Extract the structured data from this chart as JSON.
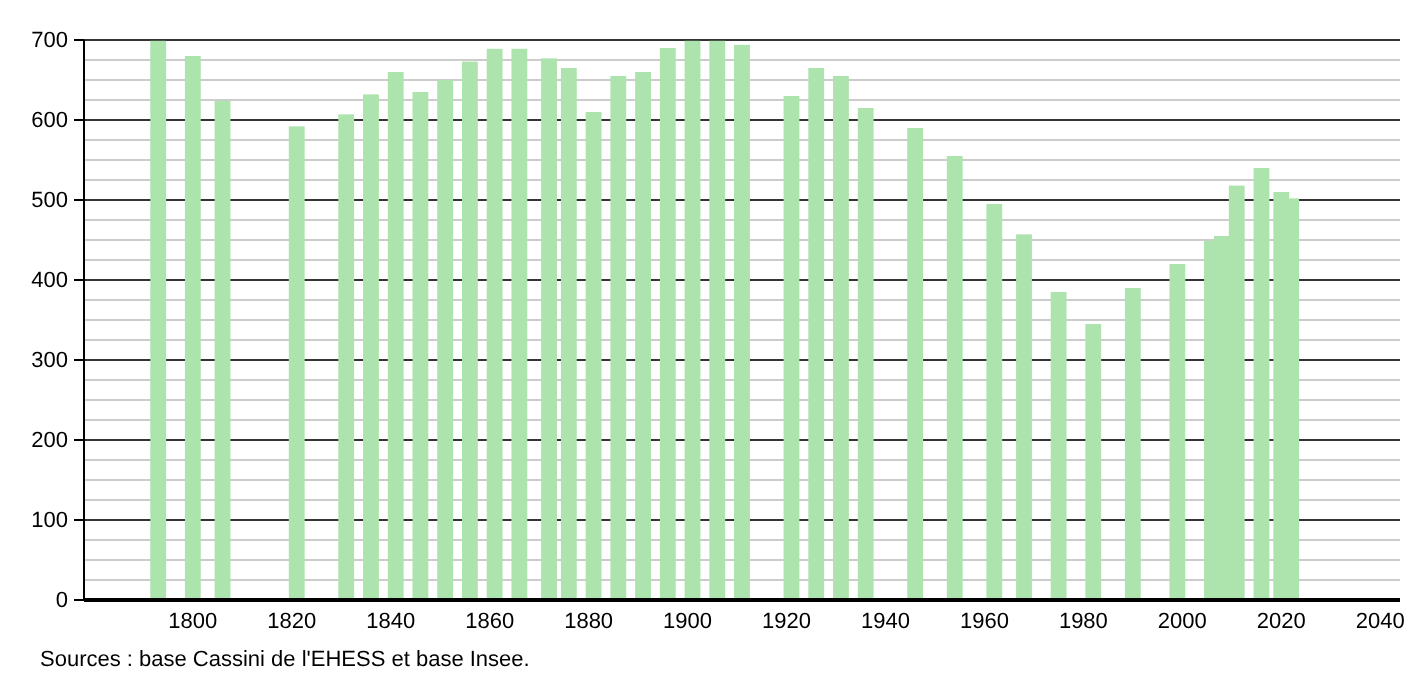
{
  "chart_data": {
    "type": "bar",
    "x": [
      1793,
      1800,
      1806,
      1821,
      1831,
      1836,
      1841,
      1846,
      1851,
      1856,
      1861,
      1866,
      1872,
      1876,
      1881,
      1886,
      1891,
      1896,
      1901,
      1906,
      1911,
      1921,
      1926,
      1931,
      1936,
      1946,
      1954,
      1962,
      1968,
      1975,
      1982,
      1990,
      1999,
      2006,
      2008,
      2011,
      2016,
      2020,
      2022
    ],
    "values": [
      699,
      680,
      624,
      592,
      607,
      632,
      660,
      635,
      650,
      673,
      689,
      689,
      677,
      665,
      610,
      655,
      660,
      690,
      699,
      699,
      694,
      630,
      665,
      655,
      615,
      590,
      555,
      495,
      457,
      385,
      345,
      390,
      420,
      449,
      455,
      518,
      540,
      510,
      502
    ],
    "color": "#ade3ad",
    "xlim": [
      1778,
      2044
    ],
    "xticks": [
      1800,
      1820,
      1840,
      1860,
      1880,
      1900,
      1920,
      1940,
      1960,
      1980,
      2000,
      2020,
      2040
    ],
    "ylim": [
      0,
      700
    ],
    "yticks": [
      0,
      100,
      200,
      300,
      400,
      500,
      600,
      700
    ],
    "grid": "y",
    "annotations": [
      "Sources : base Cassini de l'EHESS et base Insee."
    ]
  }
}
